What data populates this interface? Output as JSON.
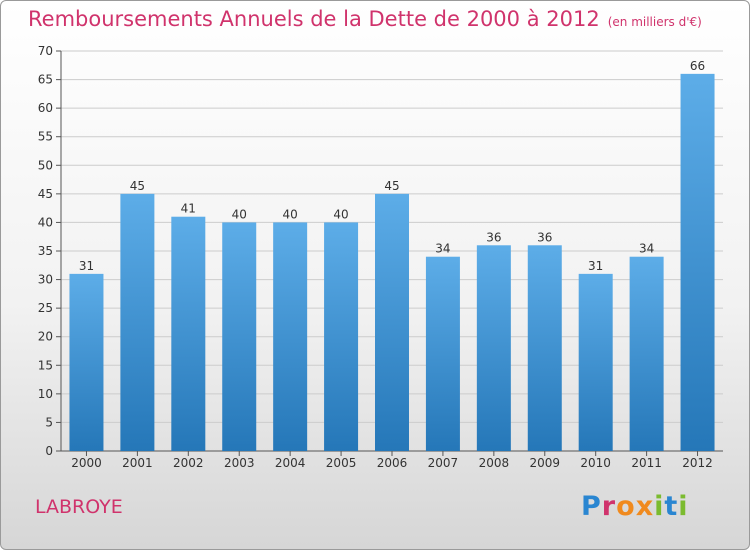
{
  "title": "Remboursements Annuels de la Dette de 2000 à 2012",
  "subtitle": "(en milliers d'€)",
  "commune": "LABROYE",
  "logo": {
    "letters": [
      "P",
      "r",
      "o",
      "x",
      "i",
      "t",
      "i"
    ]
  },
  "colors": {
    "title": "#d0336c",
    "bar_light": "#5dade8",
    "bar_dark": "#2577b8",
    "grid": "#cccccc"
  },
  "chart_data": {
    "type": "bar",
    "categories": [
      "2000",
      "2001",
      "2002",
      "2003",
      "2004",
      "2005",
      "2006",
      "2007",
      "2008",
      "2009",
      "2010",
      "2011",
      "2012"
    ],
    "values": [
      31,
      45,
      41,
      40,
      40,
      40,
      45,
      34,
      36,
      36,
      31,
      34,
      66
    ],
    "ylim": [
      0,
      70
    ],
    "yticks": [
      0,
      5,
      10,
      15,
      20,
      25,
      30,
      35,
      40,
      45,
      50,
      55,
      60,
      65,
      70
    ],
    "grid": true,
    "data_labels": true
  }
}
